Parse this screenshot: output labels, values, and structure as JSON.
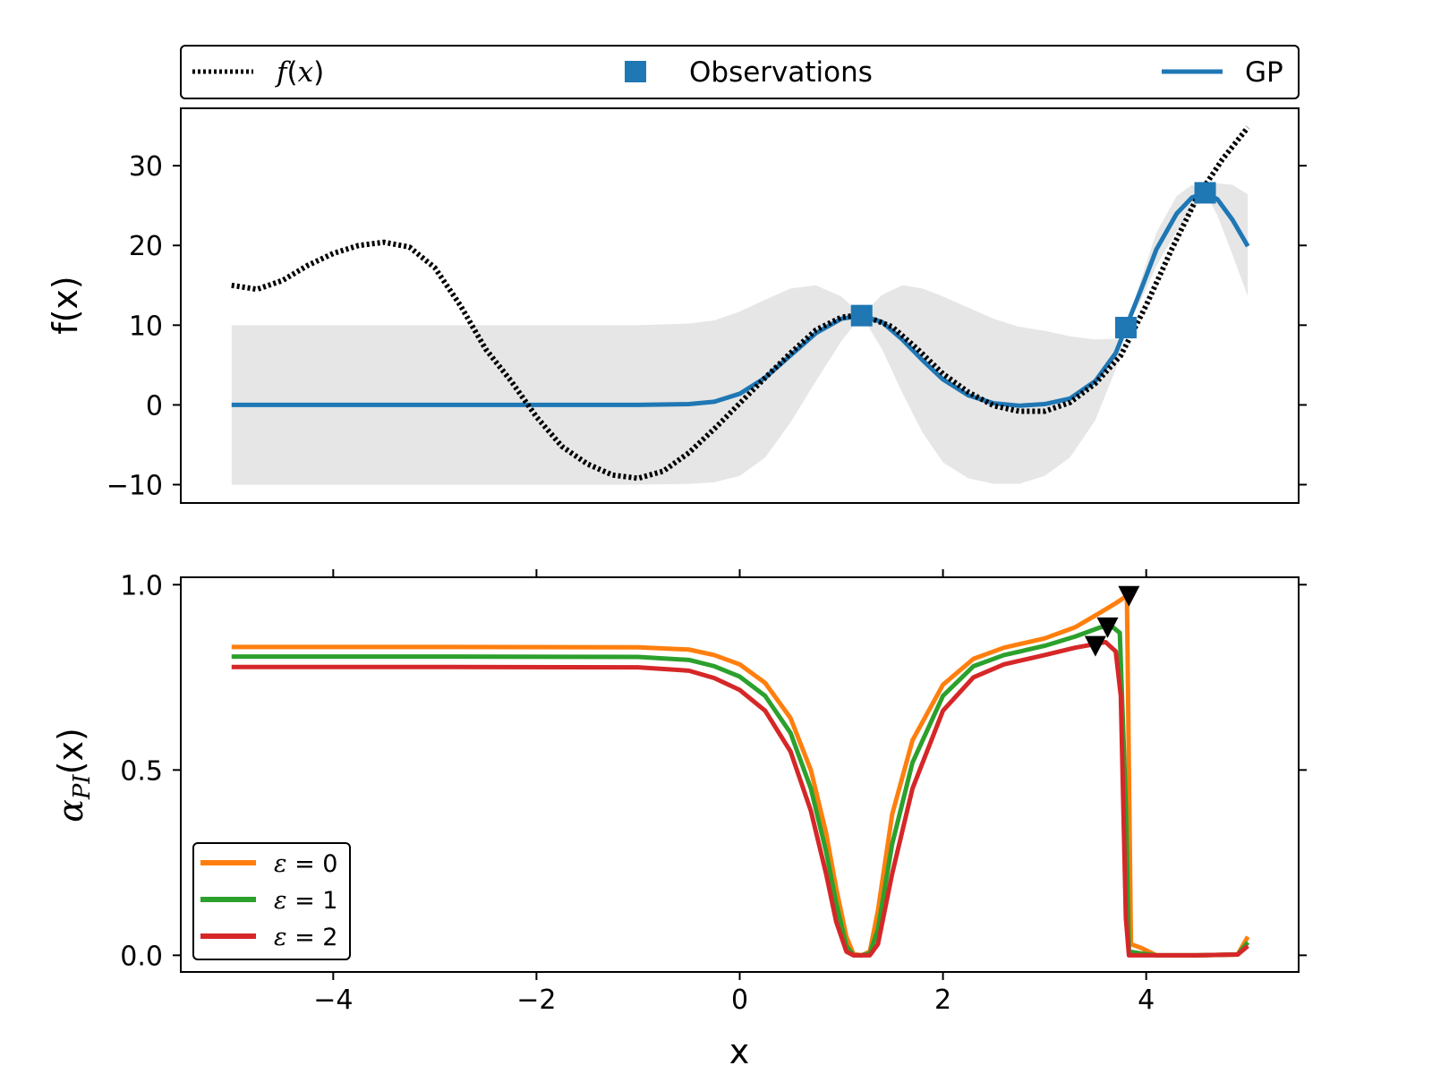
{
  "chart_data": [
    {
      "type": "line",
      "xlim": [
        -5.5,
        5.5
      ],
      "ylim": [
        -12.3,
        37.2
      ],
      "ylabel": "f(x)",
      "yticks": [
        -10,
        0,
        10,
        20,
        30
      ],
      "ytick_labels": [
        "−10",
        "0",
        "10",
        "20",
        "30"
      ],
      "grid": false,
      "legend": {
        "placement": "above plot, spanning full width",
        "entries": [
          {
            "label_prefix": "",
            "label_var": "f",
            "label_suffix": "(",
            "label_var2": "x",
            "label_end": ")",
            "style": "dotted",
            "color": "#000000"
          },
          {
            "label": "Observations",
            "style": "square-marker",
            "color": "#1f77b4"
          },
          {
            "label": "GP",
            "style": "solid",
            "color": "#1f77b4"
          }
        ]
      },
      "series": [
        {
          "name": "f(x)",
          "color": "#000000",
          "style": "dotted",
          "x": [
            -5.0,
            -4.75,
            -4.5,
            -4.25,
            -4.0,
            -3.75,
            -3.5,
            -3.25,
            -3.0,
            -2.75,
            -2.5,
            -2.25,
            -2.0,
            -1.75,
            -1.5,
            -1.25,
            -1.0,
            -0.75,
            -0.5,
            -0.25,
            0.0,
            0.25,
            0.5,
            0.75,
            1.0,
            1.2,
            1.5,
            1.75,
            2.0,
            2.25,
            2.5,
            2.75,
            3.0,
            3.25,
            3.5,
            3.75,
            4.0,
            4.25,
            4.5,
            4.75,
            5.0
          ],
          "y": [
            15.0,
            14.5,
            15.6,
            17.5,
            19.0,
            20.0,
            20.4,
            19.8,
            17.2,
            12.5,
            7.0,
            3.0,
            -1.5,
            -5.2,
            -7.4,
            -8.8,
            -9.2,
            -8.3,
            -6.0,
            -3.0,
            0.2,
            3.4,
            6.5,
            9.4,
            11.0,
            11.3,
            9.8,
            7.0,
            3.9,
            1.6,
            -0.1,
            -0.8,
            -0.8,
            0.3,
            2.7,
            6.2,
            12.5,
            19.5,
            26.0,
            30.8,
            34.8
          ]
        },
        {
          "name": "Observations",
          "color": "#1f77b4",
          "style": "marker",
          "x": [
            1.2,
            3.8,
            4.58
          ],
          "y": [
            11.2,
            9.7,
            26.6
          ]
        },
        {
          "name": "GP",
          "color": "#1f77b4",
          "style": "solid",
          "x": [
            -5.0,
            -4.0,
            -3.0,
            -2.0,
            -1.0,
            -0.5,
            -0.25,
            0.0,
            0.25,
            0.5,
            0.75,
            1.0,
            1.2,
            1.4,
            1.6,
            1.8,
            2.0,
            2.25,
            2.5,
            2.75,
            3.0,
            3.25,
            3.5,
            3.7,
            3.8,
            3.95,
            4.1,
            4.3,
            4.45,
            4.58,
            4.7,
            4.85,
            5.0
          ],
          "y": [
            0,
            0,
            0,
            0,
            0,
            0.1,
            0.4,
            1.4,
            3.4,
            6.2,
            9.0,
            10.8,
            11.2,
            10.4,
            8.2,
            5.6,
            3.2,
            1.2,
            0.2,
            -0.1,
            0.1,
            0.8,
            3.0,
            6.5,
            9.7,
            14.5,
            19.5,
            24.0,
            26.0,
            26.6,
            25.8,
            23.2,
            19.9
          ]
        },
        {
          "name": "GP uncertainty band",
          "color": "#e6e6e6",
          "style": "band",
          "x": [
            -5.0,
            -4.0,
            -3.0,
            -2.0,
            -1.0,
            -0.5,
            -0.25,
            0.0,
            0.25,
            0.5,
            0.75,
            1.0,
            1.2,
            1.4,
            1.6,
            1.8,
            2.0,
            2.25,
            2.5,
            2.75,
            3.0,
            3.25,
            3.5,
            3.7,
            3.8,
            3.95,
            4.1,
            4.3,
            4.45,
            4.58,
            4.7,
            4.85,
            5.0
          ],
          "upper": [
            10,
            10,
            10,
            10,
            10,
            10.2,
            10.6,
            11.7,
            13.2,
            14.6,
            15.0,
            13.6,
            11.2,
            13.8,
            15.0,
            14.6,
            13.6,
            12.2,
            10.8,
            9.8,
            9.3,
            8.6,
            8.2,
            8.3,
            9.7,
            15.8,
            21.6,
            26.2,
            27.6,
            26.6,
            27.8,
            27.6,
            26.4
          ],
          "lower": [
            -10,
            -10,
            -10,
            -10,
            -10,
            -9.9,
            -9.7,
            -8.9,
            -6.6,
            -2.2,
            3.0,
            8.0,
            11.2,
            7.0,
            1.5,
            -3.5,
            -7.2,
            -9.2,
            -9.9,
            -9.9,
            -8.9,
            -6.6,
            -1.9,
            4.5,
            9.7,
            13.2,
            17.4,
            21.8,
            24.4,
            26.6,
            23.8,
            18.8,
            13.6
          ]
        }
      ]
    },
    {
      "type": "line",
      "xlim": [
        -5.5,
        5.5
      ],
      "ylim": [
        -0.045,
        1.02
      ],
      "xlabel": "x",
      "ylabel_main": "α",
      "ylabel_sub": "PI",
      "ylabel_tail": "(x)",
      "xticks": [
        -4,
        -2,
        0,
        2,
        4
      ],
      "xtick_labels": [
        "−4",
        "−2",
        "0",
        "2",
        "4"
      ],
      "yticks": [
        0.0,
        0.5,
        1.0
      ],
      "ytick_labels": [
        "0.0",
        "0.5",
        "1.0"
      ],
      "grid": false,
      "legend": {
        "placement": "bottom-left",
        "entries": [
          {
            "var": "ε",
            "rest": " = 0",
            "color": "#ff7f0e"
          },
          {
            "var": "ε",
            "rest": " = 1",
            "color": "#2ca02c"
          },
          {
            "var": "ε",
            "rest": " = 2",
            "color": "#d62728"
          }
        ]
      },
      "series": [
        {
          "name": "ε = 0",
          "color": "#ff7f0e",
          "x": [
            -5.0,
            -3.0,
            -1.0,
            -0.5,
            -0.25,
            0.0,
            0.25,
            0.5,
            0.7,
            0.85,
            0.95,
            1.05,
            1.12,
            1.2,
            1.28,
            1.36,
            1.5,
            1.7,
            2.0,
            2.3,
            2.6,
            3.0,
            3.3,
            3.55,
            3.7,
            3.81,
            3.83,
            3.85,
            3.95,
            4.1,
            4.5,
            4.9,
            5.0
          ],
          "y": [
            0.832,
            0.832,
            0.831,
            0.825,
            0.81,
            0.785,
            0.735,
            0.64,
            0.5,
            0.33,
            0.18,
            0.05,
            0.003,
            0.0,
            0.01,
            0.12,
            0.38,
            0.58,
            0.73,
            0.8,
            0.83,
            0.855,
            0.885,
            0.925,
            0.95,
            0.97,
            0.5,
            0.03,
            0.02,
            0.0,
            0.0,
            0.002,
            0.05
          ]
        },
        {
          "name": "ε = 1",
          "color": "#2ca02c",
          "x": [
            -5.0,
            -3.0,
            -1.0,
            -0.5,
            -0.25,
            0.0,
            0.25,
            0.5,
            0.7,
            0.85,
            0.95,
            1.05,
            1.12,
            1.2,
            1.28,
            1.36,
            1.5,
            1.7,
            2.0,
            2.3,
            2.6,
            3.0,
            3.3,
            3.55,
            3.65,
            3.74,
            3.8,
            3.83,
            3.95,
            4.1,
            4.5,
            4.9,
            5.0
          ],
          "y": [
            0.806,
            0.806,
            0.805,
            0.797,
            0.78,
            0.752,
            0.7,
            0.6,
            0.45,
            0.28,
            0.14,
            0.025,
            0.0,
            0.0,
            0.005,
            0.07,
            0.3,
            0.52,
            0.7,
            0.78,
            0.81,
            0.835,
            0.86,
            0.885,
            0.89,
            0.87,
            0.4,
            0.01,
            0.005,
            0.0,
            0.0,
            0.002,
            0.035
          ]
        },
        {
          "name": "ε = 2",
          "color": "#d62728",
          "x": [
            -5.0,
            -3.0,
            -1.0,
            -0.5,
            -0.25,
            0.0,
            0.25,
            0.5,
            0.7,
            0.85,
            0.95,
            1.05,
            1.12,
            1.2,
            1.28,
            1.36,
            1.5,
            1.7,
            2.0,
            2.3,
            2.6,
            3.0,
            3.3,
            3.5,
            3.6,
            3.7,
            3.75,
            3.8,
            3.83,
            3.95,
            4.1,
            4.5,
            4.9,
            5.0
          ],
          "y": [
            0.778,
            0.778,
            0.777,
            0.768,
            0.748,
            0.716,
            0.66,
            0.55,
            0.39,
            0.22,
            0.09,
            0.01,
            0.0,
            0.0,
            0.0,
            0.03,
            0.22,
            0.45,
            0.66,
            0.75,
            0.785,
            0.81,
            0.83,
            0.84,
            0.845,
            0.82,
            0.7,
            0.1,
            0.0,
            0.0,
            0.0,
            0.0,
            0.002,
            0.025
          ]
        }
      ],
      "markers": [
        {
          "series": "ε = 0",
          "x": 3.83,
          "y": 0.97,
          "color": "#000000",
          "shape": "down-triangle"
        },
        {
          "series": "ε = 1",
          "x": 3.62,
          "y": 0.885,
          "color": "#000000",
          "shape": "down-triangle"
        },
        {
          "series": "ε = 2",
          "x": 3.5,
          "y": 0.835,
          "color": "#000000",
          "shape": "down-triangle"
        }
      ]
    }
  ]
}
